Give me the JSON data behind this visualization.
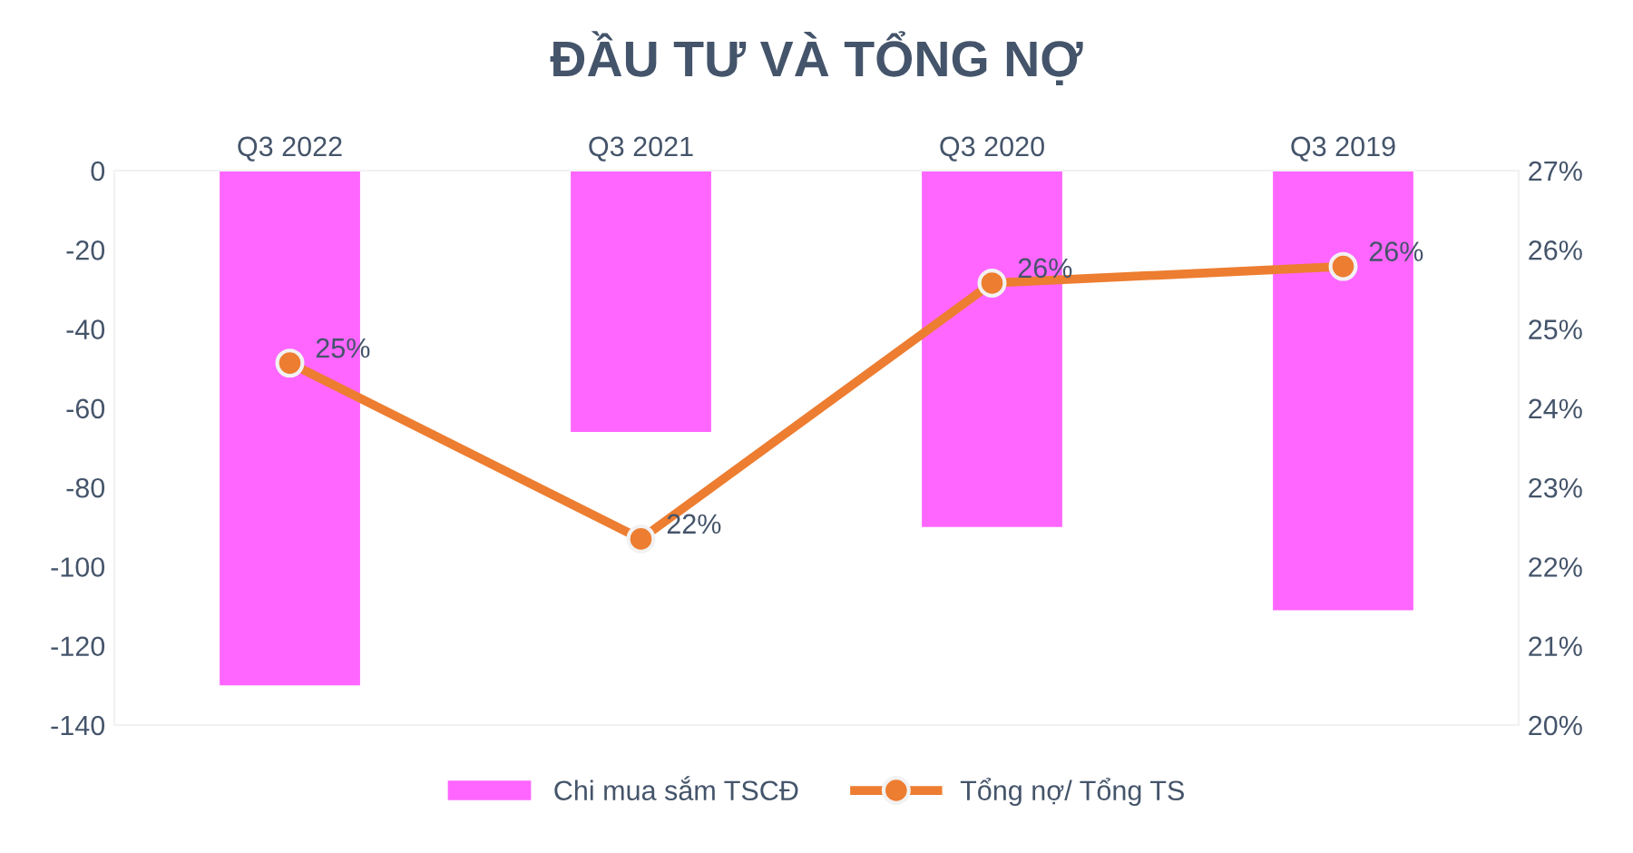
{
  "chart_data": {
    "type": "bar",
    "title": "ĐẦU TƯ VÀ TỔNG NỢ",
    "categories": [
      "Q3 2022",
      "Q3 2021",
      "Q3 2020",
      "Q3 2019"
    ],
    "series": [
      {
        "name": "Chi mua sắm TSCĐ",
        "color": "#ff66ff",
        "values": [
          -130,
          -66,
          -90,
          -111
        ]
      },
      {
        "name": "Tổng nợ/ Tổng TS",
        "type": "line",
        "axis": "y2",
        "color": "#ed7d31",
        "values": [
          24.57,
          22.35,
          25.58,
          25.79
        ],
        "value_labels": [
          "25%",
          "22%",
          "26%",
          "26%"
        ],
        "marker": "circle"
      }
    ],
    "ylim": [
      -140,
      0
    ],
    "yticks": [
      -140,
      -120,
      -100,
      -80,
      -60,
      -40,
      -20,
      0
    ],
    "y2lim": [
      20,
      27
    ],
    "y2ticks": [
      {
        "value": 20,
        "label": "20%"
      },
      {
        "value": 21,
        "label": "21%"
      },
      {
        "value": 22,
        "label": "22%"
      },
      {
        "value": 23,
        "label": "23%"
      },
      {
        "value": 24,
        "label": "24%"
      },
      {
        "value": 25,
        "label": "25%"
      },
      {
        "value": 26,
        "label": "26%"
      },
      {
        "value": 27,
        "label": "27%"
      }
    ],
    "grid": false,
    "legend": "bottom"
  }
}
